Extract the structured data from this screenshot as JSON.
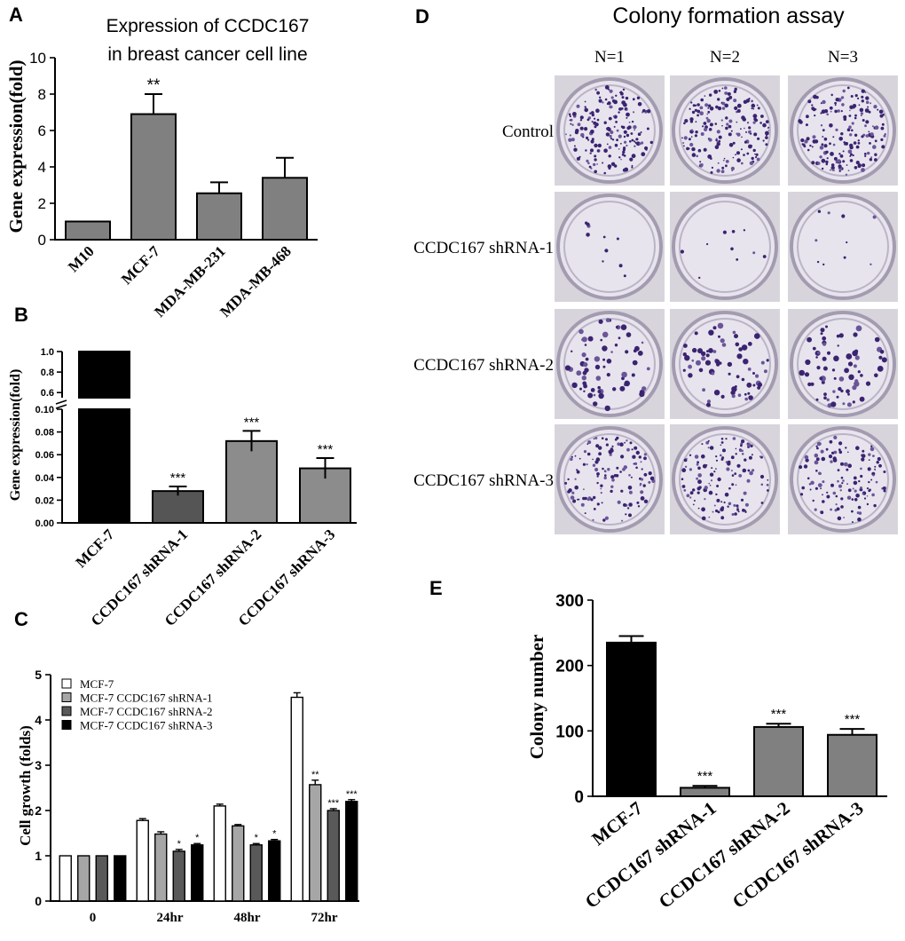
{
  "panel_labels": {
    "a": "A",
    "b": "B",
    "c": "C",
    "d": "D",
    "e": "E"
  },
  "chart_data": [
    {
      "id": "A",
      "type": "bar",
      "title": "Expression of CCDC167\nin breast cancer cell line",
      "ylabel": "Gene expression(fold)",
      "categories": [
        "M10",
        "MCF-7",
        "MDA-MB-231",
        "MDA-MB-468"
      ],
      "values": [
        1.0,
        6.9,
        2.55,
        3.4
      ],
      "errors": [
        0,
        1.1,
        0.6,
        1.1
      ],
      "significance": [
        "",
        "**",
        "",
        ""
      ],
      "ylim": [
        0,
        10
      ],
      "yticks": [
        0,
        2,
        4,
        6,
        8,
        10
      ],
      "bar_color": "#808080"
    },
    {
      "id": "B",
      "type": "bar",
      "ylabel": "Gene expression(fold)",
      "categories": [
        "MCF-7",
        "CCDC167 shRNA-1",
        "CCDC167 shRNA-2",
        "CCDC167 shRNA-3"
      ],
      "values": [
        1.0,
        0.028,
        0.072,
        0.048
      ],
      "errors": [
        0,
        0.004,
        0.009,
        0.009
      ],
      "significance": [
        "",
        "***",
        "***",
        "***"
      ],
      "colors": [
        "#000000",
        "#555555",
        "#8c8c8c",
        "#8c8c8c"
      ],
      "yticks_lower": [
        "0.00",
        "0.02",
        "0.04",
        "0.06",
        "0.08",
        "0.10"
      ],
      "yticks_upper": [
        "0.6",
        "0.8",
        "1.0"
      ],
      "ylim_lower": [
        0,
        0.1
      ],
      "ylim_upper": [
        0.55,
        1.0
      ]
    },
    {
      "id": "C",
      "type": "bar",
      "ylabel": "Cell growth (folds)",
      "categories": [
        "0",
        "24hr",
        "48hr",
        "72hr"
      ],
      "series": [
        {
          "name": "MCF-7",
          "color": "#ffffff",
          "values": [
            1.0,
            1.78,
            2.1,
            4.5
          ],
          "errors": [
            0,
            0.04,
            0.04,
            0.1
          ],
          "significance": [
            "",
            "",
            "",
            ""
          ]
        },
        {
          "name": "MCF-7 CCDC167 shRNA-1",
          "color": "#a6a6a6",
          "values": [
            1.0,
            1.48,
            1.66,
            2.57
          ],
          "errors": [
            0,
            0.05,
            0.03,
            0.1
          ],
          "significance": [
            "",
            "",
            "",
            "**"
          ]
        },
        {
          "name": "MCF-7 CCDC167 shRNA-2",
          "color": "#595959",
          "values": [
            1.0,
            1.1,
            1.24,
            2.0
          ],
          "errors": [
            0,
            0.04,
            0.03,
            0.04
          ],
          "significance": [
            "",
            "*",
            "*",
            "***"
          ]
        },
        {
          "name": "MCF-7 CCDC167 shRNA-3",
          "color": "#000000",
          "values": [
            1.0,
            1.24,
            1.33,
            2.2
          ],
          "errors": [
            0,
            0.03,
            0.03,
            0.04
          ],
          "significance": [
            "",
            "*",
            "*",
            "***"
          ]
        }
      ],
      "ylim": [
        0,
        5
      ],
      "yticks": [
        0,
        1,
        2,
        3,
        4,
        5
      ],
      "legend": "top-left"
    },
    {
      "id": "E",
      "type": "bar",
      "ylabel": "Colony number",
      "categories": [
        "MCF-7",
        "CCDC167 shRNA-1",
        "CCDC167 shRNA-2",
        "CCDC167 shRNA-3"
      ],
      "values": [
        235,
        13,
        106,
        94
      ],
      "errors": [
        10,
        3,
        5,
        9
      ],
      "significance": [
        "",
        "***",
        "***",
        "***"
      ],
      "colors": [
        "#000000",
        "#808080",
        "#808080",
        "#808080"
      ],
      "ylim": [
        0,
        300
      ],
      "yticks": [
        0,
        100,
        200,
        300
      ]
    }
  ],
  "colony": {
    "title": "Colony formation assay",
    "columns": [
      "N=1",
      "N=2",
      "N=3"
    ],
    "rows": [
      "Control",
      "CCDC167 shRNA-1",
      "CCDC167 shRNA-2",
      "CCDC167 shRNA-3"
    ],
    "density": [
      180,
      10,
      70,
      130
    ]
  }
}
